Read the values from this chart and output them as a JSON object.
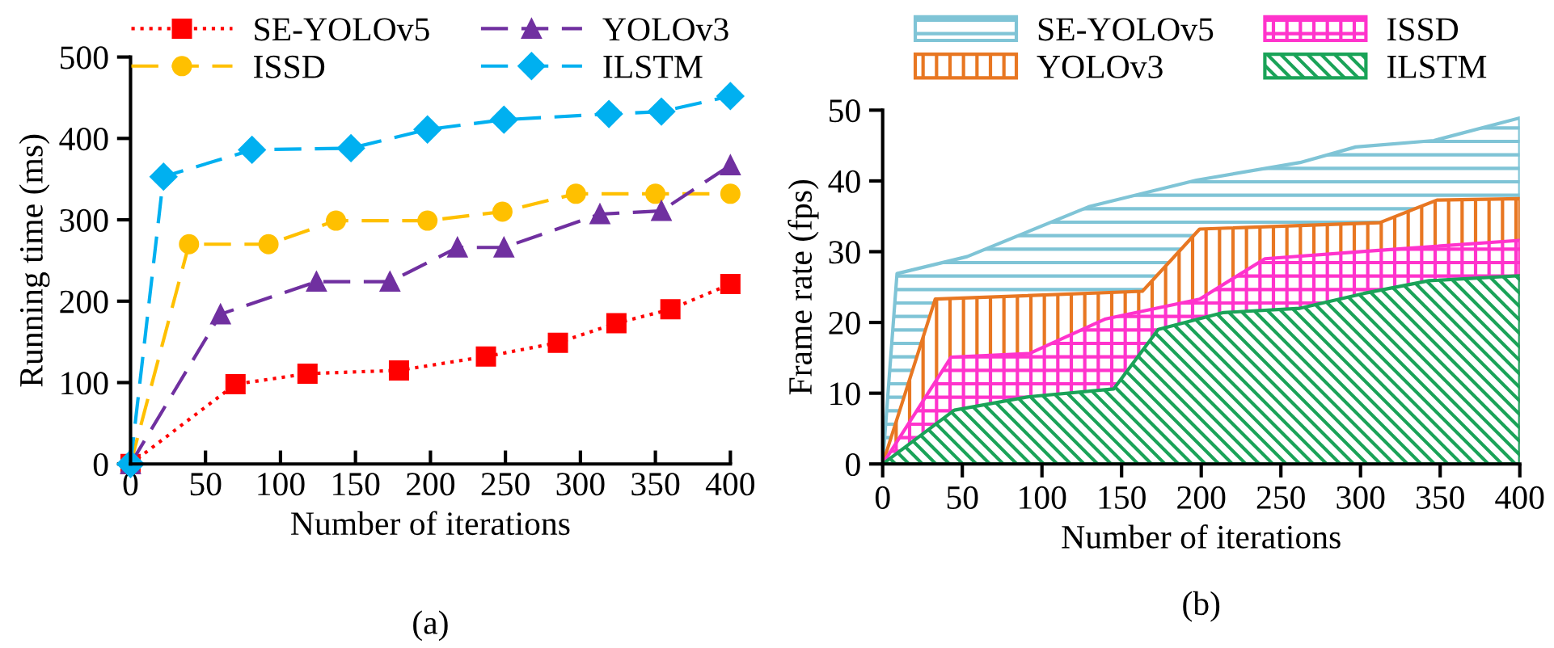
{
  "chart_data": [
    {
      "type": "line",
      "xlabel": "Number of iterations",
      "ylabel": "Running time (ms)",
      "annotations": [
        "(a)"
      ],
      "xlim": [
        0,
        400
      ],
      "xticks": [
        0,
        50,
        100,
        150,
        200,
        250,
        300,
        350,
        400
      ],
      "ylim": [
        0,
        500
      ],
      "yticks": [
        0,
        100,
        200,
        300,
        400,
        500
      ],
      "legend": "top",
      "grid": false,
      "series": [
        {
          "name": "SE-YOLOv5",
          "color": "#ff0000",
          "marker": "square",
          "line_style": "dotted",
          "x": [
            0,
            70,
            118,
            179,
            237,
            285,
            324,
            360,
            400
          ],
          "values": [
            0,
            98,
            111,
            115,
            132,
            149,
            173,
            190,
            221
          ]
        },
        {
          "name": "ISSD",
          "color": "#ffc000",
          "marker": "circle",
          "line_style": "dashed",
          "x": [
            0,
            39,
            92,
            137,
            198,
            248,
            297,
            350,
            400
          ],
          "values": [
            0,
            270,
            270,
            299,
            299,
            310,
            332,
            332,
            332
          ]
        },
        {
          "name": "YOLOv3",
          "color": "#7030a0",
          "marker": "triangle",
          "line_style": "dashed",
          "x": [
            0,
            60,
            124,
            173,
            218,
            249,
            313,
            354,
            400
          ],
          "values": [
            0,
            184,
            224,
            224,
            266,
            266,
            307,
            311,
            367
          ]
        },
        {
          "name": "ILSTM",
          "color": "#00b0f0",
          "marker": "diamond",
          "line_style": "dashed",
          "x": [
            0,
            22,
            81,
            147,
            198,
            249,
            319,
            354,
            400
          ],
          "values": [
            0,
            353,
            386,
            388,
            411,
            423,
            430,
            433,
            452
          ]
        }
      ]
    },
    {
      "type": "area",
      "xlabel": "Number of iterations",
      "ylabel": "Frame rate (fps)",
      "annotations": [
        "(b)"
      ],
      "xlim": [
        0,
        400
      ],
      "xticks": [
        0,
        50,
        100,
        150,
        200,
        250,
        300,
        350,
        400
      ],
      "ylim": [
        0,
        50
      ],
      "yticks": [
        0,
        10,
        20,
        30,
        40,
        50
      ],
      "legend": "top",
      "grid": false,
      "series": [
        {
          "name": "SE-YOLOv5",
          "color": "#7fc4d6",
          "x": [
            0,
            9,
            53,
            130,
            197,
            262,
            297,
            346,
            400
          ],
          "values": [
            0,
            26.9,
            29.3,
            36.4,
            40.1,
            42.6,
            44.8,
            45.7,
            48.9
          ]
        },
        {
          "name": "YOLOv3",
          "color": "#e87722",
          "x": [
            0,
            33,
            163,
            199,
            312,
            348,
            400
          ],
          "values": [
            0,
            23.3,
            24.4,
            33.2,
            34.1,
            37.3,
            37.5
          ]
        },
        {
          "name": "ISSD",
          "color": "#ff33cc",
          "x": [
            0,
            43,
            92,
            140,
            199,
            240,
            306,
            400
          ],
          "values": [
            0,
            15.1,
            15.6,
            20.5,
            23.3,
            29.0,
            30.1,
            31.6
          ]
        },
        {
          "name": "ILSTM",
          "color": "#1aa358",
          "x": [
            0,
            45,
            92,
            145,
            173,
            214,
            262,
            302,
            343,
            400
          ],
          "values": [
            0,
            7.6,
            9.5,
            10.6,
            19.0,
            21.4,
            22.0,
            24.1,
            25.9,
            26.6
          ]
        }
      ]
    }
  ]
}
